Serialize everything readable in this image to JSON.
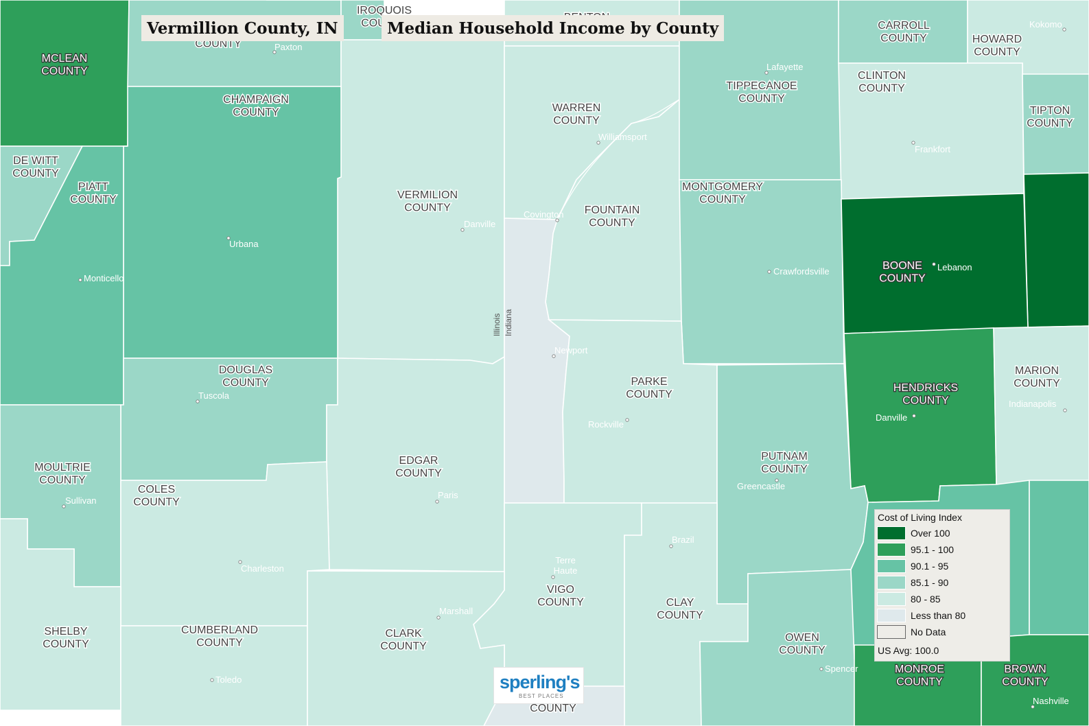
{
  "title": "Vermillion County, IN",
  "subtitle": "Median Household Income by County",
  "colors": {
    "over_100": "#006e2e",
    "r95_100": "#2e9f5a",
    "r90_95": "#66c3a5",
    "r85_90": "#9bd7c7",
    "r80_85": "#cbeae2",
    "less_80": "#dfe9ec",
    "no_data": "#eeede8"
  },
  "map": {
    "state_labels": {
      "illinois": "Illinois",
      "indiana": "Indiana"
    },
    "counties": {
      "mclean": "MCLEAN\nCOUNTY",
      "iroquois": "IROQUOIS\nCOUNTY",
      "benton": "BENTON\nCOUNTY",
      "ford": "FORD\nCOUNTY",
      "carroll": "CARROLL\nCOUNTY",
      "howard": "HOWARD\nCOUNTY",
      "champaign": "CHAMPAIGN\nCOUNTY",
      "warren": "WARREN\nCOUNTY",
      "tippecanoe": "TIPPECANOE\nCOUNTY",
      "clinton": "CLINTON\nCOUNTY",
      "tipton": "TIPTON\nCOUNTY",
      "dewitt": "DE WITT\nCOUNTY",
      "piatt": "PIATT\nCOUNTY",
      "vermilion": "VERMILION\nCOUNTY",
      "fountain": "FOUNTAIN\nCOUNTY",
      "montgomery": "MONTGOMERY\nCOUNTY",
      "boone": "BOONE\nCOUNTY",
      "douglas": "DOUGLAS\nCOUNTY",
      "parke": "PARKE\nCOUNTY",
      "hendricks": "HENDRICKS\nCOUNTY",
      "marion": "MARION\nCOUNTY",
      "moultrie": "MOULTRIE\nCOUNTY",
      "edgar": "EDGAR\nCOUNTY",
      "putnam": "PUTNAM\nCOUNTY",
      "coles": "COLES\nCOUNTY",
      "vigo": "VIGO\nCOUNTY",
      "clay": "CLAY\nCOUNTY",
      "shelby": "SHELBY\nCOUNTY",
      "cumberland": "CUMBERLAND\nCOUNTY",
      "clark": "CLARK\nCOUNTY",
      "owen": "OWEN\nCOUNTY",
      "monroe": "MONROE\nCOUNTY",
      "brown": "BROWN\nCOUNTY",
      "sullivan": "COUNTY"
    },
    "cities": {
      "paxton": "Paxton",
      "kokomo": "Kokomo",
      "lafayette": "Lafayette",
      "williamsport": "Williamsport",
      "frankfort": "Frankfort",
      "covington": "Covington",
      "danville_il": "Danville",
      "urbana": "Urbana",
      "monticello": "Monticello",
      "lebanon": "Lebanon",
      "crawfordsville": "Crawfordsville",
      "newport": "Newport",
      "tuscola": "Tuscola",
      "danville_in": "Danville",
      "indianapolis": "Indianapolis",
      "rockville": "Rockville",
      "greencastle": "Greencastle",
      "paris": "Paris",
      "sullivan": "Sullivan",
      "brazil": "Brazil",
      "charleston": "Charleston",
      "terre_haute": "Terre\nHaute",
      "marshall": "Marshall",
      "spencer": "Spencer",
      "toledo": "Toledo",
      "nashville": "Nashville"
    }
  },
  "legend": {
    "title": "Cost of Living Index",
    "items": [
      {
        "label": "Over 100",
        "color": "#006e2e"
      },
      {
        "label": "95.1 - 100",
        "color": "#2e9f5a"
      },
      {
        "label": "90.1 - 95",
        "color": "#66c3a5"
      },
      {
        "label": "85.1 - 90",
        "color": "#9bd7c7"
      },
      {
        "label": "80 - 85",
        "color": "#cbeae2"
      },
      {
        "label": "Less than 80",
        "color": "#dfe9ec"
      },
      {
        "label": "No Data",
        "color": "#eeede8"
      }
    ],
    "footer": "US Avg: 100.0"
  },
  "logo": {
    "brand": "sperling's",
    "tagline": "BEST PLACES"
  }
}
